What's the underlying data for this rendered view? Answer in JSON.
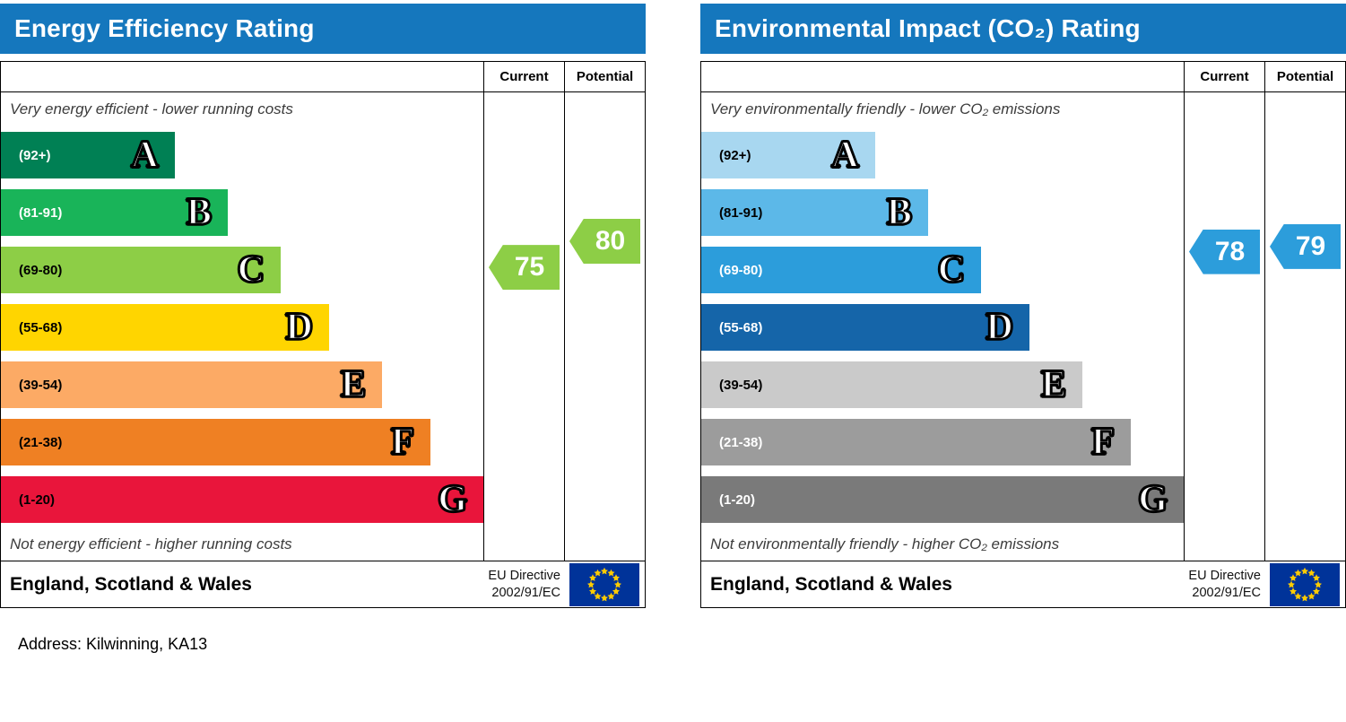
{
  "page": {
    "address": "Address: Kilwinning, KA13",
    "eu_flag": {
      "background": "#003399",
      "stars": "#ffcc00"
    }
  },
  "chart_data": [
    {
      "type": "bar",
      "title": "Energy Efficiency Rating",
      "header_color": "#1577bd",
      "columns": [
        "Current",
        "Potential"
      ],
      "current": 75,
      "potential": 80,
      "top_caption": "Very energy efficient - lower running costs",
      "bottom_caption": "Not energy efficient - higher running costs",
      "footer_region": "England, Scotland & Wales",
      "directive": [
        "EU Directive",
        "2002/91/EC"
      ],
      "bands": [
        {
          "label": "(92+)",
          "letter": "A",
          "min": 92,
          "max": 100,
          "color": "#008054",
          "label_color": "#ffffff",
          "width_pct": 36
        },
        {
          "label": "(81-91)",
          "letter": "B",
          "min": 81,
          "max": 91,
          "color": "#19b459",
          "label_color": "#ffffff",
          "width_pct": 47
        },
        {
          "label": "(69-80)",
          "letter": "C",
          "min": 69,
          "max": 80,
          "color": "#8dce46",
          "label_color": "#000000",
          "width_pct": 58
        },
        {
          "label": "(55-68)",
          "letter": "D",
          "min": 55,
          "max": 68,
          "color": "#ffd500",
          "label_color": "#000000",
          "width_pct": 68
        },
        {
          "label": "(39-54)",
          "letter": "E",
          "min": 39,
          "max": 54,
          "color": "#fcaa65",
          "label_color": "#000000",
          "width_pct": 79
        },
        {
          "label": "(21-38)",
          "letter": "F",
          "min": 21,
          "max": 38,
          "color": "#ef8023",
          "label_color": "#000000",
          "width_pct": 89
        },
        {
          "label": "(1-20)",
          "letter": "G",
          "min": 1,
          "max": 20,
          "color": "#e9153b",
          "label_color": "#000000",
          "width_pct": 100
        }
      ]
    },
    {
      "type": "bar",
      "title": "Environmental Impact (CO₂) Rating",
      "header_color": "#1577bd",
      "columns": [
        "Current",
        "Potential"
      ],
      "current": 78,
      "potential": 79,
      "top_caption": "Very environmentally friendly - lower CO₂ emissions",
      "bottom_caption": "Not environmentally friendly - higher CO₂ emissions",
      "footer_region": "England, Scotland & Wales",
      "directive": [
        "EU Directive",
        "2002/91/EC"
      ],
      "bands": [
        {
          "label": "(92+)",
          "letter": "A",
          "min": 92,
          "max": 100,
          "color": "#a8d7f0",
          "label_color": "#000000",
          "width_pct": 36
        },
        {
          "label": "(81-91)",
          "letter": "B",
          "min": 81,
          "max": 91,
          "color": "#5cb8e8",
          "label_color": "#000000",
          "width_pct": 47
        },
        {
          "label": "(69-80)",
          "letter": "C",
          "min": 69,
          "max": 80,
          "color": "#2c9ddb",
          "label_color": "#ffffff",
          "width_pct": 58
        },
        {
          "label": "(55-68)",
          "letter": "D",
          "min": 55,
          "max": 68,
          "color": "#1565a9",
          "label_color": "#ffffff",
          "width_pct": 68
        },
        {
          "label": "(39-54)",
          "letter": "E",
          "min": 39,
          "max": 54,
          "color": "#cacaca",
          "label_color": "#000000",
          "width_pct": 79
        },
        {
          "label": "(21-38)",
          "letter": "F",
          "min": 21,
          "max": 38,
          "color": "#9c9c9c",
          "label_color": "#ffffff",
          "width_pct": 89
        },
        {
          "label": "(1-20)",
          "letter": "G",
          "min": 1,
          "max": 20,
          "color": "#7a7a7a",
          "label_color": "#ffffff",
          "width_pct": 100
        }
      ]
    }
  ]
}
